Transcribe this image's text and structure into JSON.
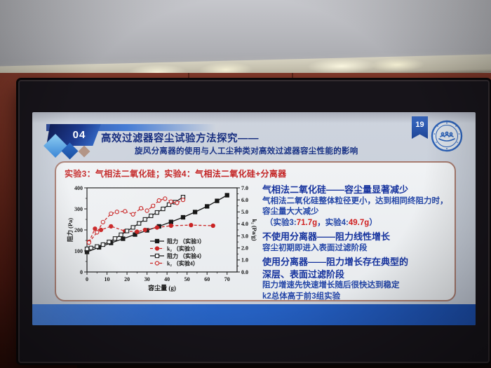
{
  "slide": {
    "badge": "04",
    "title": "高效过滤器容尘试验方法探究——",
    "subtitle": "旋风分离器的使用与人工尘种类对高效过滤器容尘性能的影响",
    "page_number": "19",
    "logo_name": "tongji-university-seal",
    "experiments_label": "实验3：气相法二氧化硅；实验4：气相法二氧化硅+分离器"
  },
  "chart_data": {
    "type": "line",
    "xlabel": "容尘量 (g)",
    "ylabel_left": "阻力 (Pa)",
    "ylabel_right": "k₂ (Pa/g)",
    "xlim": [
      0,
      75
    ],
    "ylim_left": [
      0,
      400
    ],
    "ylim_right": [
      0,
      7
    ],
    "x_ticks": [
      0,
      10,
      20,
      30,
      40,
      50,
      60,
      70
    ],
    "x_minor_ticks": [
      5,
      15,
      25,
      35,
      45,
      55,
      65
    ],
    "y_ticks_left": [
      0,
      100,
      200,
      300,
      400
    ],
    "y_minor_ticks_left": [
      50,
      150,
      250,
      350
    ],
    "y_ticks_right": [
      "0.0",
      "1.0",
      "2.0",
      "3.0",
      "4.0",
      "5.0",
      "6.0",
      "7.0"
    ],
    "y_minor_ticks_right": [
      0.5,
      1.5,
      2.5,
      3.5,
      4.5,
      5.5,
      6.5
    ],
    "grid": false,
    "legend_position": "lower-right-inside",
    "series": [
      {
        "name": "阻力 （实验3）",
        "axis": "left",
        "marker": "square-filled",
        "line": "solid",
        "color": "#151515",
        "x": [
          0,
          6,
          12,
          18,
          24,
          30,
          36,
          42,
          48,
          54,
          60,
          65,
          70
        ],
        "y": [
          95,
          117,
          138,
          158,
          178,
          198,
          217,
          238,
          260,
          285,
          312,
          338,
          365
        ]
      },
      {
        "name": "k₂ （实验3）",
        "axis": "right",
        "marker": "circle-filled",
        "line": "dashed",
        "color": "#c92323",
        "x": [
          1,
          4,
          7,
          12,
          19,
          25,
          29,
          35,
          42,
          52,
          63
        ],
        "y": [
          2.5,
          3.6,
          3.5,
          3.8,
          3.4,
          3.35,
          3.5,
          3.7,
          3.85,
          3.9,
          3.85
        ]
      },
      {
        "name": "阻力 （实验4）",
        "axis": "left",
        "marker": "square-open",
        "line": "solid",
        "color": "#151515",
        "x": [
          0,
          2,
          5,
          8,
          11,
          14,
          17,
          20,
          23,
          26,
          29,
          32,
          35,
          38,
          41,
          44,
          48
        ],
        "y": [
          110,
          114,
          121,
          130,
          143,
          159,
          177,
          195,
          212,
          231,
          250,
          267,
          283,
          300,
          320,
          332,
          356
        ]
      },
      {
        "name": "k₂ （实验4）",
        "axis": "right",
        "marker": "circle-open",
        "line": "dashed",
        "color": "#c92323",
        "x": [
          1,
          5,
          8,
          12,
          15,
          19,
          23,
          27,
          30,
          33,
          36,
          39,
          42,
          45,
          48
        ],
        "y": [
          2.45,
          3.3,
          4.15,
          4.85,
          5.0,
          5.05,
          4.8,
          5.3,
          5.1,
          5.5,
          5.95,
          6.1,
          5.85,
          5.75,
          6.0
        ]
      }
    ]
  },
  "findings": {
    "items": [
      {
        "style": "heading",
        "text": "气相法二氧化硅——容尘量显著减少"
      },
      {
        "style": "body",
        "text": "气相法二氧化硅整体粒径更小，达到相同终阻力时，容尘量大大减少"
      },
      {
        "style": "paren",
        "parts": [
          {
            "text": "（实验3:"
          },
          {
            "text": "71.7g",
            "red": true
          },
          {
            "text": "，实验4:"
          },
          {
            "text": "49.7g",
            "red": true
          },
          {
            "text": "）"
          }
        ]
      },
      {
        "style": "heading",
        "text": "不使用分离器——阻力线性增长"
      },
      {
        "style": "body",
        "text": "容尘初期即进入表面过滤阶段"
      },
      {
        "style": "heading",
        "text": "使用分离器——阻力增长存在典型的\n深层、表面过滤阶段"
      },
      {
        "style": "body",
        "text": "阻力增速先快速增长随后很快达到稳定"
      },
      {
        "style": "body",
        "text": "k2总体高于前3组实验"
      }
    ]
  },
  "colors": {
    "accent_navy": "#182f80",
    "heading_blue": "#16339e",
    "body_blue": "#2547a8",
    "red_accent": "#c32222",
    "band_blue": "#2763c4",
    "card_border": "#a87c70",
    "series_black": "#151515",
    "series_red": "#c92323"
  }
}
